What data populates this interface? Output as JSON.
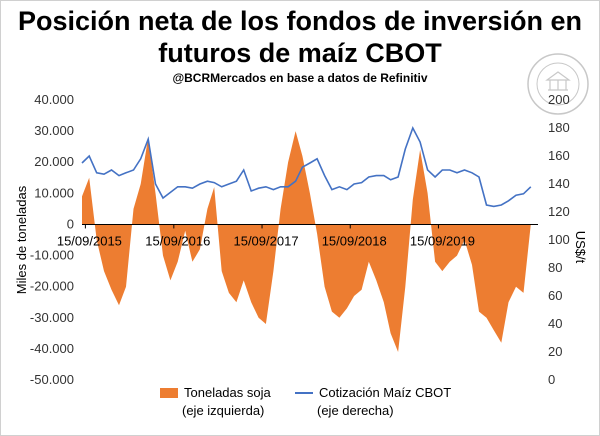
{
  "header": {
    "title_line1": "Posición neta de los fondos de inversión en",
    "title_line2": "futuros de maíz CBOT",
    "subtitle": "@BCRMercados  en base a datos de Refinitiv"
  },
  "logo": {
    "name": "bolsa-de-comercio-de-rosario-seal",
    "text": "BOLSA DE COMERCIO DE ROSARIO"
  },
  "legend": {
    "soja_label": "Toneladas soja",
    "soja_sub": "(eje izquierda)",
    "maiz_label": "Cotización Maíz CBOT",
    "maiz_sub": "(eje derecha)"
  },
  "colors": {
    "area": "#ED7D31",
    "line": "#4472C4"
  },
  "chart_data": {
    "type": "area",
    "secondary_type": "line",
    "title": "Posición neta de los fondos de inversión en futuros de maíz CBOT",
    "subtitle": "@BCRMercados  en base a datos de Refinitiv",
    "ylabel": "Miles de toneladas",
    "y2label": "US$/t",
    "ylim": [
      -50000,
      40000
    ],
    "y2lim": [
      0,
      200
    ],
    "yticks": [
      "-50.000",
      "-40.000",
      "-30.000",
      "-20.000",
      "-10.000",
      "0",
      "10.000",
      "20.000",
      "30.000",
      "40.000"
    ],
    "yticks_values": [
      -50000,
      -40000,
      -30000,
      -20000,
      -10000,
      0,
      10000,
      20000,
      30000,
      40000
    ],
    "y2ticks": [
      "0",
      "20",
      "40",
      "60",
      "80",
      "100",
      "120",
      "140",
      "160",
      "180",
      "200"
    ],
    "y2ticks_values": [
      0,
      20,
      40,
      60,
      80,
      100,
      120,
      140,
      160,
      180,
      200
    ],
    "xlim": [
      "2015-09-01",
      "2020-10-31"
    ],
    "x_tick_labels": [
      "15/09/2015",
      "15/09/2016",
      "15/09/2017",
      "15/09/2018",
      "15/09/2019"
    ],
    "x_tick_dates": [
      "2015-09-15",
      "2016-09-15",
      "2017-09-15",
      "2018-09-15",
      "2019-09-15"
    ],
    "grid": false,
    "legend_position": "bottom",
    "series": [
      {
        "name": "Toneladas soja (eje izquierda)",
        "axis": "left",
        "type": "area",
        "x": [
          "2015-09-01",
          "2015-10-01",
          "2015-11-01",
          "2015-12-01",
          "2016-01-01",
          "2016-02-01",
          "2016-03-01",
          "2016-04-01",
          "2016-05-01",
          "2016-06-01",
          "2016-07-01",
          "2016-08-01",
          "2016-09-01",
          "2016-10-01",
          "2016-11-01",
          "2016-12-01",
          "2017-01-01",
          "2017-02-01",
          "2017-03-01",
          "2017-04-01",
          "2017-05-01",
          "2017-06-01",
          "2017-07-01",
          "2017-08-01",
          "2017-09-01",
          "2017-10-01",
          "2017-11-01",
          "2017-12-01",
          "2018-01-01",
          "2018-02-01",
          "2018-03-01",
          "2018-04-01",
          "2018-05-01",
          "2018-06-01",
          "2018-07-01",
          "2018-08-01",
          "2018-09-01",
          "2018-10-01",
          "2018-11-01",
          "2018-12-01",
          "2019-01-01",
          "2019-02-01",
          "2019-03-01",
          "2019-04-01",
          "2019-05-01",
          "2019-06-01",
          "2019-07-01",
          "2019-08-01",
          "2019-09-01",
          "2019-10-01",
          "2019-11-01",
          "2019-12-01",
          "2020-01-01",
          "2020-02-01",
          "2020-03-01",
          "2020-04-01",
          "2020-05-01",
          "2020-06-01",
          "2020-07-01",
          "2020-08-01",
          "2020-09-01",
          "2020-10-01"
        ],
        "values": [
          9000,
          15000,
          -5000,
          -15000,
          -21000,
          -26000,
          -20000,
          5000,
          13000,
          28000,
          10000,
          -10000,
          -18000,
          -12000,
          -2000,
          -12000,
          -8000,
          5000,
          12000,
          -15000,
          -22000,
          -25000,
          -18000,
          -25000,
          -30000,
          -32000,
          -15000,
          5000,
          20000,
          30000,
          22000,
          10000,
          -3000,
          -20000,
          -28000,
          -30000,
          -27000,
          -23000,
          -21000,
          -12000,
          -18000,
          -25000,
          -35000,
          -41000,
          -20000,
          8000,
          24000,
          10000,
          -12000,
          -15000,
          -12000,
          -10000,
          -5000,
          -13000,
          -28000,
          -30000,
          -34000,
          -38000,
          -25000,
          -20000,
          -22000,
          0
        ]
      },
      {
        "name": "Cotización Maíz CBOT (eje derecha)",
        "axis": "right",
        "type": "line",
        "x": [
          "2015-09-01",
          "2015-10-01",
          "2015-11-01",
          "2015-12-01",
          "2016-01-01",
          "2016-02-01",
          "2016-03-01",
          "2016-04-01",
          "2016-05-01",
          "2016-06-01",
          "2016-07-01",
          "2016-08-01",
          "2016-09-01",
          "2016-10-01",
          "2016-11-01",
          "2016-12-01",
          "2017-01-01",
          "2017-02-01",
          "2017-03-01",
          "2017-04-01",
          "2017-05-01",
          "2017-06-01",
          "2017-07-01",
          "2017-08-01",
          "2017-09-01",
          "2017-10-01",
          "2017-11-01",
          "2017-12-01",
          "2018-01-01",
          "2018-02-01",
          "2018-03-01",
          "2018-04-01",
          "2018-05-01",
          "2018-06-01",
          "2018-07-01",
          "2018-08-01",
          "2018-09-01",
          "2018-10-01",
          "2018-11-01",
          "2018-12-01",
          "2019-01-01",
          "2019-02-01",
          "2019-03-01",
          "2019-04-01",
          "2019-05-01",
          "2019-06-01",
          "2019-07-01",
          "2019-08-01",
          "2019-09-01",
          "2019-10-01",
          "2019-11-01",
          "2019-12-01",
          "2020-01-01",
          "2020-02-01",
          "2020-03-01",
          "2020-04-01",
          "2020-05-01",
          "2020-06-01",
          "2020-07-01",
          "2020-08-01",
          "2020-09-01",
          "2020-10-01"
        ],
        "values": [
          155,
          160,
          148,
          147,
          150,
          146,
          148,
          150,
          158,
          172,
          140,
          130,
          134,
          138,
          138,
          137,
          140,
          142,
          141,
          138,
          140,
          142,
          150,
          135,
          137,
          138,
          136,
          138,
          138,
          142,
          152,
          155,
          158,
          146,
          136,
          138,
          136,
          140,
          141,
          145,
          146,
          146,
          143,
          145,
          165,
          180,
          170,
          150,
          145,
          150,
          150,
          148,
          150,
          148,
          145,
          125,
          124,
          125,
          128,
          132,
          133,
          138
        ]
      }
    ]
  }
}
